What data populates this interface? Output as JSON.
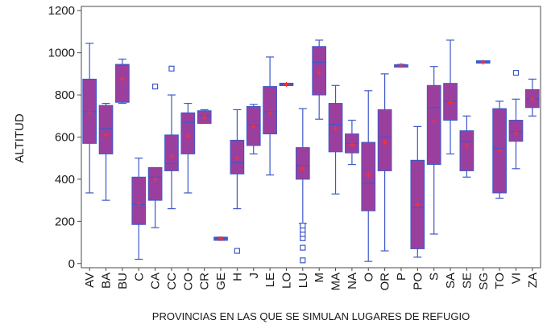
{
  "chart_data": {
    "type": "box",
    "title": "",
    "xlabel": "PROVINCIAS EN LAS QUE SE SIMULAN LUGARES DE REFUGIO",
    "ylabel": "ALTITUD",
    "ylim": [
      -20,
      1220
    ],
    "yticks": [
      0,
      200,
      400,
      600,
      800,
      1000,
      1200
    ],
    "grid": false,
    "legend": "none",
    "colors": {
      "box_fill": "#9b3f9e",
      "box_edge": "#3d59c8",
      "whisker": "#3d59c8",
      "median": "#3d59c8",
      "mean": "#ff3030",
      "outlier": "#3d59c8",
      "axis": "#4a4a4a"
    },
    "categories": [
      "AV",
      "BA",
      "BU",
      "C",
      "CA",
      "CC",
      "CO",
      "CR",
      "GE",
      "H",
      "J",
      "LE",
      "LO",
      "LU",
      "M",
      "MA",
      "NA",
      "O",
      "OR",
      "P",
      "PO",
      "S",
      "SA",
      "SE",
      "SG",
      "TO",
      "VI",
      "ZA"
    ],
    "boxes": [
      {
        "category": "AV",
        "min": 335,
        "q1": 570,
        "median": 720,
        "q3": 875,
        "max": 1045,
        "mean": 715,
        "outliers": []
      },
      {
        "category": "BA",
        "min": 300,
        "q1": 520,
        "median": 640,
        "q3": 750,
        "max": 760,
        "mean": 610,
        "outliers": []
      },
      {
        "category": "BU",
        "min": 760,
        "q1": 765,
        "median": 940,
        "q3": 945,
        "max": 970,
        "mean": 875,
        "outliers": []
      },
      {
        "category": "C",
        "min": 20,
        "q1": 185,
        "median": 280,
        "q3": 410,
        "max": 500,
        "mean": 285,
        "outliers": []
      },
      {
        "category": "CA",
        "min": 170,
        "q1": 300,
        "median": 410,
        "q3": 455,
        "max": 455,
        "mean": 400,
        "outliers": [
          840
        ]
      },
      {
        "category": "CC",
        "min": 260,
        "q1": 440,
        "median": 475,
        "q3": 610,
        "max": 800,
        "mean": 510,
        "outliers": [
          925
        ]
      },
      {
        "category": "CO",
        "min": 335,
        "q1": 520,
        "median": 670,
        "q3": 715,
        "max": 760,
        "mean": 605,
        "outliers": []
      },
      {
        "category": "CR",
        "min": 665,
        "q1": 665,
        "median": 700,
        "q3": 725,
        "max": 730,
        "mean": 695,
        "outliers": []
      },
      {
        "category": "GE",
        "min": 110,
        "q1": 110,
        "median": 120,
        "q3": 125,
        "max": 125,
        "mean": 118,
        "outliers": []
      },
      {
        "category": "H",
        "min": 260,
        "q1": 425,
        "median": 480,
        "q3": 585,
        "max": 730,
        "mean": 500,
        "outliers": [
          60
        ]
      },
      {
        "category": "J",
        "min": 520,
        "q1": 560,
        "median": 655,
        "q3": 745,
        "max": 755,
        "mean": 650,
        "outliers": []
      },
      {
        "category": "LE",
        "min": 420,
        "q1": 615,
        "median": 720,
        "q3": 840,
        "max": 980,
        "mean": 715,
        "outliers": []
      },
      {
        "category": "LO",
        "min": 850,
        "q1": 850,
        "median": 850,
        "q3": 850,
        "max": 855,
        "mean": 850,
        "outliers": []
      },
      {
        "category": "LU",
        "min": 190,
        "q1": 400,
        "median": 465,
        "q3": 550,
        "max": 735,
        "mean": 450,
        "outliers": [
          15,
          75,
          120,
          140,
          160,
          180
        ]
      },
      {
        "category": "M",
        "min": 685,
        "q1": 800,
        "median": 955,
        "q3": 1030,
        "max": 1060,
        "mean": 905,
        "outliers": []
      },
      {
        "category": "MA",
        "min": 330,
        "q1": 530,
        "median": 660,
        "q3": 760,
        "max": 845,
        "mean": 640,
        "outliers": []
      },
      {
        "category": "NA",
        "min": 470,
        "q1": 525,
        "median": 570,
        "q3": 615,
        "max": 680,
        "mean": 565,
        "outliers": []
      },
      {
        "category": "O",
        "min": 10,
        "q1": 250,
        "median": 380,
        "q3": 575,
        "max": 820,
        "mean": 420,
        "outliers": []
      },
      {
        "category": "OR",
        "min": 60,
        "q1": 440,
        "median": 600,
        "q3": 730,
        "max": 900,
        "mean": 575,
        "outliers": []
      },
      {
        "category": "P",
        "min": 935,
        "q1": 935,
        "median": 940,
        "q3": 940,
        "max": 945,
        "mean": 940,
        "outliers": []
      },
      {
        "category": "PO",
        "min": 30,
        "q1": 70,
        "median": 265,
        "q3": 490,
        "max": 650,
        "mean": 280,
        "outliers": []
      },
      {
        "category": "S",
        "min": 140,
        "q1": 470,
        "median": 740,
        "q3": 845,
        "max": 935,
        "mean": 675,
        "outliers": []
      },
      {
        "category": "SA",
        "min": 520,
        "q1": 680,
        "median": 770,
        "q3": 855,
        "max": 1060,
        "mean": 765,
        "outliers": []
      },
      {
        "category": "SE",
        "min": 410,
        "q1": 440,
        "median": 580,
        "q3": 630,
        "max": 700,
        "mean": 560,
        "outliers": []
      },
      {
        "category": "SG",
        "min": 955,
        "q1": 955,
        "median": 955,
        "q3": 958,
        "max": 960,
        "mean": 955,
        "outliers": []
      },
      {
        "category": "TO",
        "min": 310,
        "q1": 335,
        "median": 545,
        "q3": 735,
        "max": 770,
        "mean": 535,
        "outliers": []
      },
      {
        "category": "VI",
        "min": 450,
        "q1": 580,
        "median": 625,
        "q3": 680,
        "max": 780,
        "mean": 620,
        "outliers": [
          905
        ]
      },
      {
        "category": "ZA",
        "min": 700,
        "q1": 740,
        "median": 780,
        "q3": 825,
        "max": 875,
        "mean": 780,
        "outliers": []
      }
    ]
  }
}
